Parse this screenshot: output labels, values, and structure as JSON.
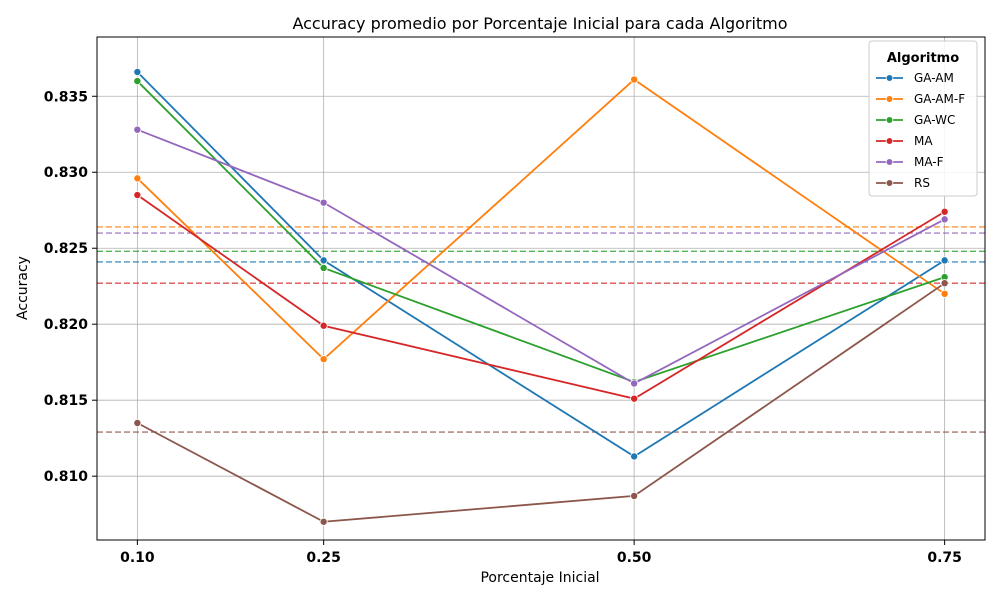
{
  "chart_data": {
    "type": "line",
    "title": "Accuracy promedio por Porcentaje Inicial para cada Algoritmo",
    "xlabel": "Porcentaje Inicial",
    "ylabel": "Accuracy",
    "x": [
      0.1,
      0.25,
      0.5,
      0.75
    ],
    "x_tick_labels": [
      "0.10",
      "0.25",
      "0.50",
      "0.75"
    ],
    "xlim": [
      0.0675,
      0.7825
    ],
    "ylim": [
      0.8058,
      0.8389
    ],
    "y_ticks": [
      0.81,
      0.815,
      0.82,
      0.825,
      0.83,
      0.835
    ],
    "y_tick_labels": [
      "0.810",
      "0.815",
      "0.820",
      "0.825",
      "0.830",
      "0.835"
    ],
    "grid": true,
    "legend_title": "Algoritmo",
    "legend_position": "top-right",
    "series": [
      {
        "name": "GA-AM",
        "color": "#1f77b4",
        "values": [
          0.8366,
          0.8242,
          0.8113,
          0.8242
        ],
        "mean": 0.8241
      },
      {
        "name": "GA-AM-F",
        "color": "#ff7f0e",
        "values": [
          0.8296,
          0.8177,
          0.8361,
          0.822
        ],
        "mean": 0.8264
      },
      {
        "name": "GA-WC",
        "color": "#2ca02c",
        "values": [
          0.836,
          0.8237,
          0.8162,
          0.8231
        ],
        "mean": 0.8248
      },
      {
        "name": "MA",
        "color": "#d62728",
        "values": [
          0.8285,
          0.8199,
          0.8151,
          0.8274
        ],
        "mean": 0.8227
      },
      {
        "name": "MA-F",
        "color": "#9467bd",
        "values": [
          0.8328,
          0.828,
          0.8161,
          0.8269
        ],
        "mean": 0.826
      },
      {
        "name": "RS",
        "color": "#8c564b",
        "values": [
          0.8135,
          0.807,
          0.8087,
          0.8227
        ],
        "mean": 0.8129
      }
    ]
  }
}
